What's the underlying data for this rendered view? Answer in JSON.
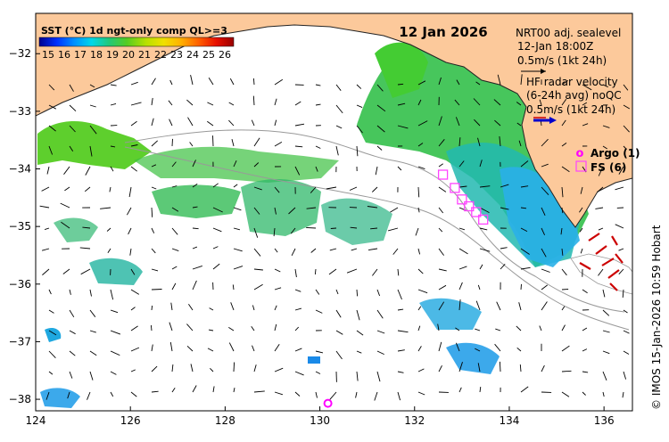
{
  "map": {
    "date": "12 Jan 2026",
    "credit": "© IMOS 15-Jan-2026 10:59 Hobart",
    "x_ticks": [
      "124",
      "126",
      "128",
      "130",
      "132",
      "134",
      "136"
    ],
    "y_ticks": [
      "−32",
      "−33",
      "−34",
      "−35",
      "−36",
      "−37",
      "−38"
    ],
    "lon_range": [
      124,
      136.6
    ],
    "lat_range": [
      -38.2,
      -31.3
    ]
  },
  "colorbar": {
    "title": "SST (°C) 1d ngt-only comp QL>=3",
    "labels": [
      "15",
      "16",
      "17",
      "18",
      "19",
      "20",
      "21",
      "22",
      "23",
      "24",
      "25",
      "26"
    ],
    "colors": [
      "#00008f",
      "#0030ff",
      "#0090ff",
      "#00d8e8",
      "#22c878",
      "#55cc22",
      "#b8e000",
      "#f0e000",
      "#ffb000",
      "#ff6000",
      "#e81000",
      "#990000"
    ]
  },
  "legend": {
    "sealevel_title": "NRT00 adj. sealevel",
    "sealevel_time": "12-Jan 18:00Z",
    "sealevel_scale": "0.5m/s (1kt 24h)",
    "hf_title": "HF radar velocity",
    "hf_subtitle": "(6-24h avg) noQC",
    "hf_scale": "0.5m/s (1kt 24h)",
    "argo_label": "Argo (1)",
    "fs_label": "FS (6)"
  },
  "colors": {
    "land": "#fcc99b",
    "coast": "#222222",
    "argo": "#ff00ff",
    "fs": "#ff44ff",
    "hf_arrow": "#cc0000",
    "hf_scale_arrow": "#0000cc",
    "bathy": "#999999"
  },
  "argo_floats": [
    {
      "lon": 130.17,
      "lat": -38.07
    }
  ],
  "fs_sites": [
    {
      "lon": 132.6,
      "lat": -34.1
    },
    {
      "lon": 132.85,
      "lat": -34.33
    },
    {
      "lon": 133.0,
      "lat": -34.53
    },
    {
      "lon": 133.15,
      "lat": -34.65
    },
    {
      "lon": 133.3,
      "lat": -34.75
    },
    {
      "lon": 133.45,
      "lat": -34.88
    }
  ]
}
